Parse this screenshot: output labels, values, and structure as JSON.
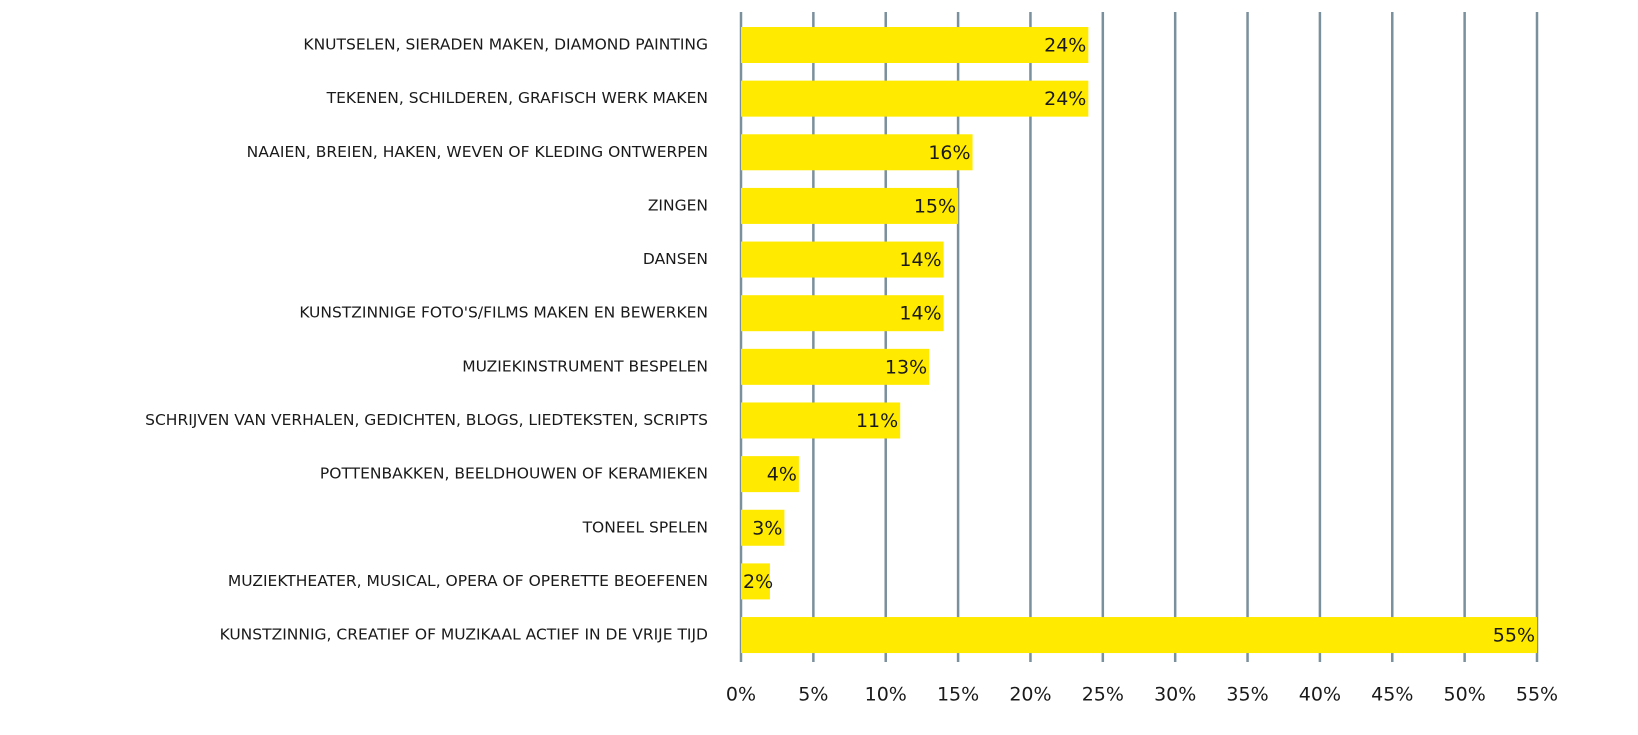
{
  "chart_data": {
    "type": "barh",
    "categories": [
      "KNUTSELEN, SIERADEN MAKEN, DIAMOND PAINTING",
      "TEKENEN, SCHILDEREN, GRAFISCH WERK MAKEN",
      "NAAIEN, BREIEN, HAKEN, WEVEN OF KLEDING ONTWERPEN",
      "ZINGEN",
      "DANSEN",
      "KUNSTZINNIGE FOTO'S/FILMS MAKEN EN BEWERKEN",
      "MUZIEKINSTRUMENT BESPELEN",
      "SCHRIJVEN VAN VERHALEN, GEDICHTEN, BLOGS, LIEDTEKSTEN, SCRIPTS",
      "POTTENBAKKEN, BEELDHOUWEN OF KERAMIEKEN",
      "TONEEL SPELEN",
      "MUZIEKTHEATER, MUSICAL, OPERA OF OPERETTE BEOEFENEN",
      "KUNSTZINNIG, CREATIEF OF MUZIKAAL ACTIEF IN DE VRIJE TIJD"
    ],
    "values": [
      24,
      24,
      16,
      15,
      14,
      14,
      13,
      11,
      4,
      3,
      2,
      55
    ],
    "value_labels": [
      "24%",
      "24%",
      "16%",
      "15%",
      "14%",
      "14%",
      "13%",
      "11%",
      "4%",
      "3%",
      "2%",
      "55%"
    ],
    "color": "#ffea00",
    "xlim": [
      0,
      55
    ],
    "xticks": [
      {
        "value": 0,
        "label": "0%"
      },
      {
        "value": 5,
        "label": "5%"
      },
      {
        "value": 10,
        "label": "10%"
      },
      {
        "value": 15,
        "label": "15%"
      },
      {
        "value": 20,
        "label": "20%"
      },
      {
        "value": 25,
        "label": "25%"
      },
      {
        "value": 30,
        "label": "30%"
      },
      {
        "value": 35,
        "label": "35%"
      },
      {
        "value": 40,
        "label": "40%"
      },
      {
        "value": 45,
        "label": "45%"
      },
      {
        "value": 50,
        "label": "50%"
      },
      {
        "value": 55,
        "label": "55%"
      }
    ],
    "grid": true,
    "grid_color": "#7a909c"
  }
}
